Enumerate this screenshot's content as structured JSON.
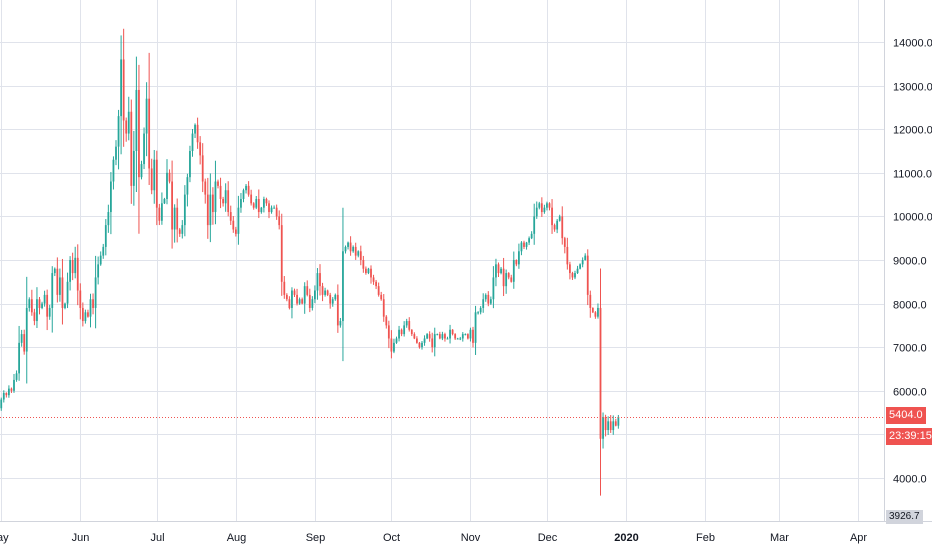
{
  "chart_data": {
    "type": "candlestick",
    "y_ticks": [
      "14000.0",
      "13000.0",
      "12000.0",
      "11000.0",
      "10000.0",
      "9000.0",
      "8000.0",
      "7000.0",
      "6000.0",
      "4000.0"
    ],
    "x_ticks": [
      "ay",
      "Jun",
      "Jul",
      "Aug",
      "Sep",
      "Oct",
      "Nov",
      "Dec",
      "2020",
      "Feb",
      "Mar",
      "Apr"
    ],
    "ylim": [
      3600,
      15000
    ],
    "grid": true,
    "last_price": "5404.0",
    "countdown": "23:39:15",
    "bottom_label": "3926.7",
    "colors": {
      "up": "#26a69a",
      "down": "#ef5350",
      "grid": "#e0e3eb",
      "axis": "#d1d4dc"
    },
    "close_series_start": "2019-04-30",
    "closes": [
      5600,
      5800,
      5950,
      5900,
      6050,
      6000,
      6250,
      6400,
      7100,
      7300,
      6900,
      7900,
      8100,
      7800,
      7600,
      8100,
      7900,
      8000,
      8200,
      7700,
      7900,
      8700,
      8800,
      8200,
      8600,
      7900,
      8000,
      8500,
      9000,
      8700,
      9050,
      8300,
      7900,
      7600,
      7800,
      7700,
      8100,
      7900,
      8600,
      8900,
      9100,
      9300,
      9800,
      10100,
      10800,
      11300,
      11600,
      12300,
      13600,
      12200,
      11900,
      12400,
      10700,
      11500,
      12900,
      10900,
      11200,
      11900,
      12700,
      11100,
      10600,
      11300,
      10200,
      9900,
      10300,
      10400,
      11000,
      10800,
      9700,
      10200,
      9700,
      9600,
      9800,
      10500,
      10900,
      11500,
      11900,
      12100,
      11700,
      11400,
      10800,
      10500,
      9800,
      10500,
      10100,
      10800,
      10700,
      10400,
      10300,
      10600,
      10100,
      9900,
      9700,
      9600,
      10200,
      10400,
      10600,
      10700,
      10500,
      10300,
      10200,
      10400,
      10100,
      10200,
      10400,
      10300,
      10100,
      10200,
      10200,
      10000,
      9800,
      8500,
      8200,
      8100,
      7900,
      8300,
      8200,
      8000,
      8100,
      8000,
      8400,
      8200,
      7900,
      8100,
      8300,
      8700,
      8400,
      8200,
      8300,
      8200,
      8000,
      8100,
      8200,
      7500,
      7600,
      9200,
      9300,
      9400,
      9200,
      9300,
      9100,
      9200,
      9000,
      8800,
      8700,
      8800,
      8600,
      8500,
      8400,
      8200,
      8100,
      7700,
      7500,
      7200,
      6900,
      7100,
      7200,
      7400,
      7300,
      7500,
      7600,
      7400,
      7300,
      7200,
      7100,
      7000,
      7100,
      7200,
      7300,
      7200,
      7000,
      7300,
      7300,
      7200,
      7300,
      7200,
      7200,
      7400,
      7300,
      7200,
      7200,
      7200,
      7300,
      7300,
      7200,
      7400,
      7100,
      7800,
      7800,
      7900,
      8100,
      8200,
      8000,
      8100,
      8600,
      8900,
      8700,
      8800,
      8400,
      8700,
      8600,
      8500,
      9000,
      8900,
      9200,
      9400,
      9300,
      9400,
      9500,
      9600,
      10000,
      10200,
      10300,
      10100,
      10200,
      10300,
      10200,
      9800,
      9700,
      9900,
      10000,
      9500,
      9300,
      8900,
      8700,
      8600,
      8700,
      8800,
      8900,
      9000,
      9100,
      8200,
      7900,
      7800,
      7700,
      7900,
      4900,
      5400,
      5100,
      5300,
      5100,
      5300,
      5200,
      5400
    ]
  }
}
